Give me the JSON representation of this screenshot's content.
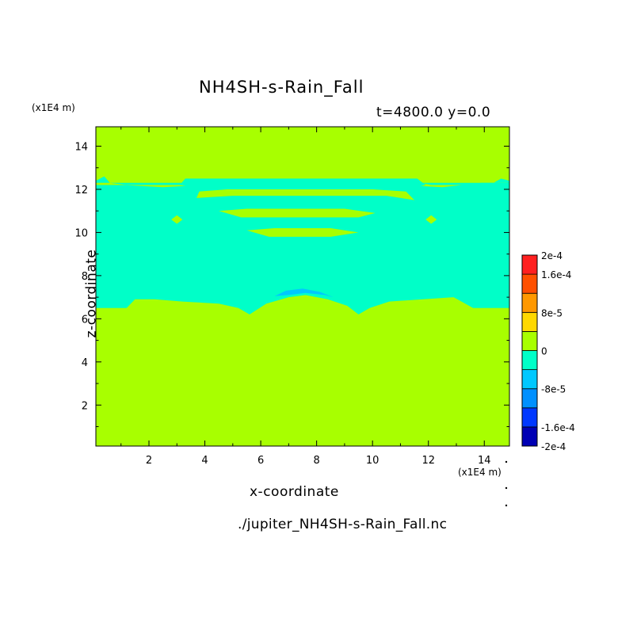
{
  "chart_data": {
    "type": "heatmap",
    "title": "NH4SH-s-Rain_Fall",
    "subtitle": "t=4800.0 y=0.0",
    "xlabel": "x-coordinate",
    "ylabel": "z-coordinate",
    "x_unit": "(x1E4 m)",
    "y_unit": "(x1E4 m)",
    "xlim": [
      0.1,
      14.9
    ],
    "ylim": [
      0.1,
      14.9
    ],
    "x_ticks": [
      2,
      4,
      6,
      8,
      10,
      12,
      14
    ],
    "y_ticks": [
      2,
      4,
      6,
      8,
      10,
      12,
      14
    ],
    "colorbar": {
      "levels": [
        -0.0002,
        -0.00016,
        -0.00012,
        -8e-05,
        -4e-05,
        0,
        4e-05,
        8e-05,
        0.00012,
        0.00016,
        0.0002
      ],
      "colors": [
        "#0000b4",
        "#0038ff",
        "#0090ff",
        "#00c8ff",
        "#00ffc8",
        "#a8ff00",
        "#ffd800",
        "#ff9800",
        "#ff5000",
        "#ff2020"
      ],
      "labels": [
        {
          "text": "2e-4",
          "value": 0.0002
        },
        {
          "text": "1.6e-4",
          "value": 0.00016
        },
        {
          "text": "8e-5",
          "value": 8e-05
        },
        {
          "text": "0",
          "value": 0
        },
        {
          "text": "-8e-5",
          "value": -8e-05
        },
        {
          "text": "-1.6e-4",
          "value": -0.00016
        },
        {
          "text": "-2e-4",
          "value": -0.0002
        }
      ]
    },
    "background_color": "#a8ff00",
    "regions": [
      {
        "name": "main-negative-layer",
        "value_range": [
          -4e-05,
          0
        ],
        "color": "#00ffc8",
        "outline": [
          [
            0.1,
            6.5
          ],
          [
            1.2,
            6.5
          ],
          [
            1.5,
            6.9
          ],
          [
            2.2,
            6.9
          ],
          [
            3.2,
            6.8
          ],
          [
            4.5,
            6.7
          ],
          [
            5.2,
            6.5
          ],
          [
            5.6,
            6.2
          ],
          [
            6.2,
            6.7
          ],
          [
            7.0,
            7.0
          ],
          [
            7.6,
            7.1
          ],
          [
            8.4,
            6.9
          ],
          [
            9.1,
            6.6
          ],
          [
            9.5,
            6.2
          ],
          [
            9.9,
            6.5
          ],
          [
            10.6,
            6.8
          ],
          [
            11.8,
            6.9
          ],
          [
            12.9,
            7.0
          ],
          [
            13.6,
            6.5
          ],
          [
            14.9,
            6.5
          ],
          [
            14.9,
            12.3
          ],
          [
            13.9,
            12.3
          ],
          [
            12.5,
            12.1
          ],
          [
            11.0,
            12.2
          ],
          [
            10.0,
            12.2
          ],
          [
            5.0,
            12.2
          ],
          [
            4.0,
            12.2
          ],
          [
            2.5,
            12.1
          ],
          [
            1.1,
            12.2
          ],
          [
            0.1,
            12.2
          ]
        ]
      },
      {
        "name": "upper-negative-band",
        "value_range": [
          -4e-05,
          0
        ],
        "color": "#00ffc8",
        "outline": [
          [
            3.1,
            12.2
          ],
          [
            3.3,
            12.5
          ],
          [
            4.5,
            12.5
          ],
          [
            10.5,
            12.5
          ],
          [
            11.6,
            12.5
          ],
          [
            11.9,
            12.2
          ],
          [
            11.2,
            12.0
          ],
          [
            4.0,
            12.0
          ]
        ]
      },
      {
        "name": "left-top-strip",
        "value_range": [
          -4e-05,
          0
        ],
        "color": "#00ffc8",
        "outline": [
          [
            0.1,
            12.4
          ],
          [
            0.4,
            12.6
          ],
          [
            0.6,
            12.3
          ],
          [
            1.2,
            12.2
          ],
          [
            3.2,
            12.2
          ],
          [
            3.3,
            12.3
          ],
          [
            0.1,
            12.3
          ]
        ]
      },
      {
        "name": "right-top-strip",
        "value_range": [
          -4e-05,
          0
        ],
        "color": "#00ffc8",
        "outline": [
          [
            11.7,
            12.3
          ],
          [
            12.1,
            12.2
          ],
          [
            14.2,
            12.2
          ],
          [
            14.6,
            12.5
          ],
          [
            14.9,
            12.4
          ],
          [
            14.9,
            12.3
          ]
        ]
      },
      {
        "name": "dome-negative-arc",
        "value_range": [
          -8e-05,
          -4e-05
        ],
        "color": "#00c8ff",
        "outline": [
          [
            6.5,
            7.05
          ],
          [
            6.9,
            7.3
          ],
          [
            7.5,
            7.4
          ],
          [
            8.1,
            7.25
          ],
          [
            8.6,
            7.0
          ],
          [
            8.3,
            7.1
          ],
          [
            7.6,
            7.2
          ],
          [
            7.0,
            7.1
          ]
        ]
      },
      {
        "name": "positive-inclusion-band-1",
        "value_range": [
          0,
          4e-05
        ],
        "color": "#a8ff00",
        "outline": [
          [
            3.8,
            11.9
          ],
          [
            4.8,
            12.0
          ],
          [
            10.0,
            12.0
          ],
          [
            11.2,
            11.9
          ],
          [
            11.5,
            11.5
          ],
          [
            10.5,
            11.7
          ],
          [
            5.0,
            11.7
          ],
          [
            3.7,
            11.6
          ]
        ]
      },
      {
        "name": "positive-inclusion-band-2",
        "value_range": [
          0,
          4e-05
        ],
        "color": "#a8ff00",
        "outline": [
          [
            4.5,
            11.0
          ],
          [
            5.5,
            11.1
          ],
          [
            9.0,
            11.1
          ],
          [
            10.1,
            10.9
          ],
          [
            9.5,
            10.7
          ],
          [
            5.3,
            10.7
          ]
        ]
      },
      {
        "name": "positive-inclusion-band-3",
        "value_range": [
          0,
          4e-05
        ],
        "color": "#a8ff00",
        "outline": [
          [
            5.5,
            10.1
          ],
          [
            6.5,
            10.2
          ],
          [
            8.5,
            10.2
          ],
          [
            9.5,
            10.0
          ],
          [
            8.5,
            9.8
          ],
          [
            6.3,
            9.8
          ]
        ]
      },
      {
        "name": "positive-spot-left",
        "value_range": [
          0,
          4e-05
        ],
        "color": "#a8ff00",
        "outline": [
          [
            2.8,
            10.6
          ],
          [
            3.0,
            10.8
          ],
          [
            3.2,
            10.6
          ],
          [
            3.0,
            10.4
          ]
        ]
      },
      {
        "name": "positive-spot-right",
        "value_range": [
          0,
          4e-05
        ],
        "color": "#a8ff00",
        "outline": [
          [
            11.9,
            10.6
          ],
          [
            12.1,
            10.8
          ],
          [
            12.3,
            10.6
          ],
          [
            12.1,
            10.4
          ]
        ]
      }
    ]
  },
  "file": "./jupiter_NH4SH-s-Rain_Fall.nc"
}
